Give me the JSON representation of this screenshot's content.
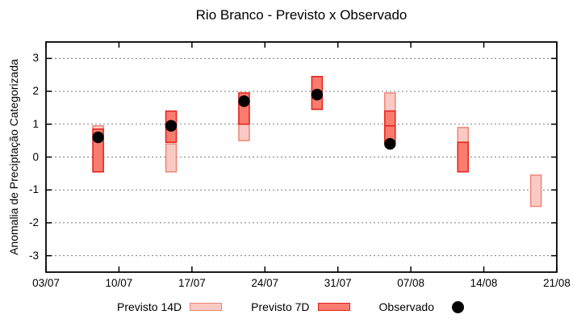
{
  "chart_data": {
    "type": "candlestick-range",
    "title": "Rio Branco - Previsto x Observado",
    "ylabel": "Anomalia de Preciptação Categorizada",
    "xlabel": "",
    "ylim": [
      -3.5,
      3.5
    ],
    "yticks": [
      3,
      2,
      1,
      0,
      -1,
      -2,
      -3
    ],
    "grid": "horizontal-dashed-gray",
    "legend_position": "below-plot",
    "xlim_days": [
      0,
      49
    ],
    "xticks": [
      {
        "day": 0,
        "label": "03/07"
      },
      {
        "day": 7,
        "label": "10/07"
      },
      {
        "day": 14,
        "label": "17/07"
      },
      {
        "day": 21,
        "label": "24/07"
      },
      {
        "day": 28,
        "label": "31/07"
      },
      {
        "day": 35,
        "label": "07/08"
      },
      {
        "day": 42,
        "label": "14/08"
      },
      {
        "day": 49,
        "label": "21/08"
      }
    ],
    "series": [
      {
        "name": "Previsto 14D",
        "type": "bar-range",
        "fill": "#f9cac4",
        "border": "#ef8475",
        "points": [
          {
            "date": "08/07",
            "day": 5,
            "low": -0.45,
            "high": 0.95
          },
          {
            "date": "15/07",
            "day": 12,
            "low": -0.45,
            "high": 0.4
          },
          {
            "date": "22/07",
            "day": 19,
            "low": 0.5,
            "high": 1.95
          },
          {
            "date": "05/08",
            "day": 33,
            "low": 1.4,
            "high": 1.95
          },
          {
            "date": "12/08",
            "day": 40,
            "low": 0.45,
            "high": 0.9
          },
          {
            "date": "19/08",
            "day": 47,
            "low": -1.5,
            "high": -0.55
          }
        ]
      },
      {
        "name": "Previsto 7D",
        "type": "bar-range",
        "fill": "#f97c6e",
        "border": "#e5211b",
        "points": [
          {
            "date": "08/07",
            "day": 5,
            "low": -0.45,
            "high": 0.85
          },
          {
            "date": "15/07",
            "day": 12,
            "low": 0.45,
            "high": 1.4
          },
          {
            "date": "22/07",
            "day": 19,
            "low": 1.0,
            "high": 1.95
          },
          {
            "date": "29/07",
            "day": 26,
            "low": 1.45,
            "high": 2.45
          },
          {
            "date": "05/08",
            "day": 33,
            "low": 0.45,
            "high": 1.4,
            "divider": 0.95
          },
          {
            "date": "12/08",
            "day": 40,
            "low": -0.45,
            "high": 0.45
          }
        ]
      },
      {
        "name": "Observado",
        "type": "scatter",
        "color": "#000000",
        "points": [
          {
            "date": "08/07",
            "day": 5,
            "value": 0.6
          },
          {
            "date": "15/07",
            "day": 12,
            "value": 0.95
          },
          {
            "date": "22/07",
            "day": 19,
            "value": 1.7
          },
          {
            "date": "29/07",
            "day": 26,
            "value": 1.9
          },
          {
            "date": "05/08",
            "day": 33,
            "value": 0.4
          }
        ]
      }
    ]
  },
  "legend": {
    "items": [
      {
        "label": "Previsto 14D",
        "type": "box",
        "fill": "#f9cac4",
        "border": "#ef8475"
      },
      {
        "label": "Previsto 7D",
        "type": "box",
        "fill": "#f97c6e",
        "border": "#e5211b"
      },
      {
        "label": "Observado",
        "type": "dot",
        "color": "#000000"
      }
    ]
  },
  "axis_style": {
    "frame_color": "#000000",
    "grid_color": "#7f7f7f",
    "background": "#ffffff"
  }
}
